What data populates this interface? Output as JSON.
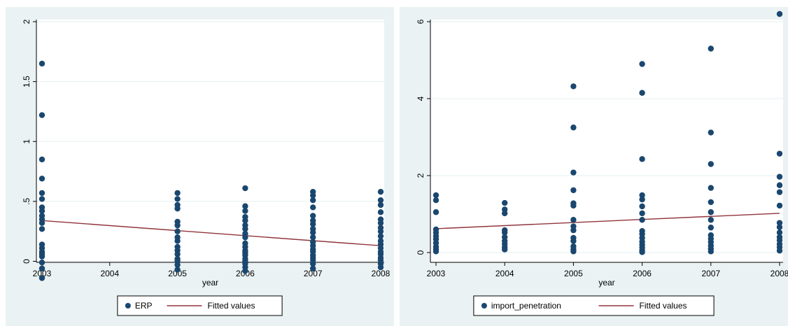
{
  "chart_data": [
    {
      "type": "scatter",
      "xlabel": "year",
      "ylabel": "",
      "xlim": [
        2003,
        2008
      ],
      "ylim": [
        0,
        2
      ],
      "xticks": [
        2003,
        2004,
        2005,
        2006,
        2007,
        2008
      ],
      "xtick_labels": [
        "2003",
        "2004",
        "2005",
        "2006",
        "2007",
        "2008"
      ],
      "yticks": [
        0,
        0.5,
        1,
        1.5,
        2
      ],
      "ytick_labels": [
        "0",
        ".5",
        "1",
        "1.5",
        "2"
      ],
      "grid": true,
      "legend_position": "bottom",
      "colors": {
        "points": "#1a476f",
        "fit": "#90353b"
      },
      "series": [
        {
          "name": "ERP",
          "kind": "scatter",
          "points": [
            [
              2003,
              1.65
            ],
            [
              2003,
              1.22
            ],
            [
              2003,
              0.85
            ],
            [
              2003,
              0.69
            ],
            [
              2003,
              0.57
            ],
            [
              2003,
              0.52
            ],
            [
              2003,
              0.45
            ],
            [
              2003,
              0.42
            ],
            [
              2003,
              0.38
            ],
            [
              2003,
              0.35
            ],
            [
              2003,
              0.32
            ],
            [
              2003,
              0.27
            ],
            [
              2003,
              0.14
            ],
            [
              2003,
              0.11
            ],
            [
              2003,
              0.08
            ],
            [
              2003,
              0.06
            ],
            [
              2003,
              0.04
            ],
            [
              2003,
              -0.01
            ],
            [
              2003,
              -0.06
            ],
            [
              2003,
              -0.14
            ],
            [
              2005,
              0.57
            ],
            [
              2005,
              0.52
            ],
            [
              2005,
              0.47
            ],
            [
              2005,
              0.44
            ],
            [
              2005,
              0.33
            ],
            [
              2005,
              0.3
            ],
            [
              2005,
              0.25
            ],
            [
              2005,
              0.2
            ],
            [
              2005,
              0.17
            ],
            [
              2005,
              0.12
            ],
            [
              2005,
              0.09
            ],
            [
              2005,
              0.06
            ],
            [
              2005,
              0.02
            ],
            [
              2005,
              0.0
            ],
            [
              2005,
              -0.03
            ],
            [
              2005,
              -0.07
            ],
            [
              2006,
              0.61
            ],
            [
              2006,
              0.46
            ],
            [
              2006,
              0.42
            ],
            [
              2006,
              0.37
            ],
            [
              2006,
              0.34
            ],
            [
              2006,
              0.3
            ],
            [
              2006,
              0.27
            ],
            [
              2006,
              0.23
            ],
            [
              2006,
              0.2
            ],
            [
              2006,
              0.15
            ],
            [
              2006,
              0.12
            ],
            [
              2006,
              0.09
            ],
            [
              2006,
              0.07
            ],
            [
              2006,
              0.05
            ],
            [
              2006,
              0.02
            ],
            [
              2006,
              0.0
            ],
            [
              2006,
              -0.02
            ],
            [
              2006,
              -0.05
            ],
            [
              2006,
              -0.08
            ],
            [
              2007,
              0.58
            ],
            [
              2007,
              0.55
            ],
            [
              2007,
              0.51
            ],
            [
              2007,
              0.45
            ],
            [
              2007,
              0.38
            ],
            [
              2007,
              0.34
            ],
            [
              2007,
              0.31
            ],
            [
              2007,
              0.27
            ],
            [
              2007,
              0.24
            ],
            [
              2007,
              0.2
            ],
            [
              2007,
              0.16
            ],
            [
              2007,
              0.13
            ],
            [
              2007,
              0.1
            ],
            [
              2007,
              0.08
            ],
            [
              2007,
              0.05
            ],
            [
              2007,
              0.03
            ],
            [
              2007,
              0.01
            ],
            [
              2007,
              -0.02
            ],
            [
              2007,
              -0.06
            ],
            [
              2008,
              0.58
            ],
            [
              2008,
              0.51
            ],
            [
              2008,
              0.47
            ],
            [
              2008,
              0.41
            ],
            [
              2008,
              0.35
            ],
            [
              2008,
              0.32
            ],
            [
              2008,
              0.28
            ],
            [
              2008,
              0.25
            ],
            [
              2008,
              0.21
            ],
            [
              2008,
              0.17
            ],
            [
              2008,
              0.14
            ],
            [
              2008,
              0.11
            ],
            [
              2008,
              0.08
            ],
            [
              2008,
              0.06
            ],
            [
              2008,
              0.03
            ],
            [
              2008,
              0.01
            ],
            [
              2008,
              -0.02
            ],
            [
              2008,
              -0.05
            ]
          ]
        },
        {
          "name": "Fitted values",
          "kind": "line",
          "points": [
            [
              2003,
              0.34
            ],
            [
              2008,
              0.13
            ]
          ]
        }
      ]
    },
    {
      "type": "scatter",
      "xlabel": "year",
      "ylabel": "",
      "xlim": [
        2003,
        2008
      ],
      "ylim": [
        0,
        6
      ],
      "xticks": [
        2003,
        2004,
        2005,
        2006,
        2007,
        2008
      ],
      "xtick_labels": [
        "2003",
        "2004",
        "2005",
        "2006",
        "2007",
        "2008"
      ],
      "yticks": [
        0,
        2,
        4,
        6
      ],
      "ytick_labels": [
        "0",
        "2",
        "4",
        "6"
      ],
      "grid": true,
      "legend_position": "bottom",
      "colors": {
        "points": "#1a476f",
        "fit": "#90353b"
      },
      "series": [
        {
          "name": "import_penetration",
          "kind": "scatter",
          "points": [
            [
              2003,
              1.49
            ],
            [
              2003,
              1.36
            ],
            [
              2003,
              1.05
            ],
            [
              2003,
              0.6
            ],
            [
              2003,
              0.52
            ],
            [
              2003,
              0.43
            ],
            [
              2003,
              0.35
            ],
            [
              2003,
              0.25
            ],
            [
              2003,
              0.15
            ],
            [
              2003,
              0.08
            ],
            [
              2003,
              0.03
            ],
            [
              2004,
              1.29
            ],
            [
              2004,
              1.12
            ],
            [
              2004,
              1.02
            ],
            [
              2004,
              0.58
            ],
            [
              2004,
              0.52
            ],
            [
              2004,
              0.4
            ],
            [
              2004,
              0.3
            ],
            [
              2004,
              0.22
            ],
            [
              2004,
              0.14
            ],
            [
              2004,
              0.08
            ],
            [
              2005,
              4.32
            ],
            [
              2005,
              3.25
            ],
            [
              2005,
              2.08
            ],
            [
              2005,
              1.62
            ],
            [
              2005,
              1.28
            ],
            [
              2005,
              1.22
            ],
            [
              2005,
              0.85
            ],
            [
              2005,
              0.68
            ],
            [
              2005,
              0.58
            ],
            [
              2005,
              0.38
            ],
            [
              2005,
              0.3
            ],
            [
              2005,
              0.16
            ],
            [
              2005,
              0.08
            ],
            [
              2005,
              0.03
            ],
            [
              2006,
              4.9
            ],
            [
              2006,
              4.15
            ],
            [
              2006,
              2.43
            ],
            [
              2006,
              1.49
            ],
            [
              2006,
              1.38
            ],
            [
              2006,
              1.2
            ],
            [
              2006,
              1.02
            ],
            [
              2006,
              0.85
            ],
            [
              2006,
              0.56
            ],
            [
              2006,
              0.48
            ],
            [
              2006,
              0.38
            ],
            [
              2006,
              0.28
            ],
            [
              2006,
              0.2
            ],
            [
              2006,
              0.13
            ],
            [
              2006,
              0.06
            ],
            [
              2006,
              0.01
            ],
            [
              2007,
              5.3
            ],
            [
              2007,
              3.12
            ],
            [
              2007,
              2.3
            ],
            [
              2007,
              1.68
            ],
            [
              2007,
              1.31
            ],
            [
              2007,
              1.05
            ],
            [
              2007,
              0.85
            ],
            [
              2007,
              0.65
            ],
            [
              2007,
              0.45
            ],
            [
              2007,
              0.36
            ],
            [
              2007,
              0.27
            ],
            [
              2007,
              0.18
            ],
            [
              2007,
              0.1
            ],
            [
              2007,
              0.03
            ],
            [
              2008,
              6.2
            ],
            [
              2008,
              2.57
            ],
            [
              2008,
              1.97
            ],
            [
              2008,
              1.75
            ],
            [
              2008,
              1.57
            ],
            [
              2008,
              1.22
            ],
            [
              2008,
              0.77
            ],
            [
              2008,
              0.66
            ],
            [
              2008,
              0.52
            ],
            [
              2008,
              0.4
            ],
            [
              2008,
              0.32
            ],
            [
              2008,
              0.22
            ],
            [
              2008,
              0.14
            ],
            [
              2008,
              0.05
            ]
          ]
        },
        {
          "name": "Fitted values",
          "kind": "line",
          "points": [
            [
              2003,
              0.62
            ],
            [
              2008,
              1.02
            ]
          ]
        }
      ]
    }
  ]
}
